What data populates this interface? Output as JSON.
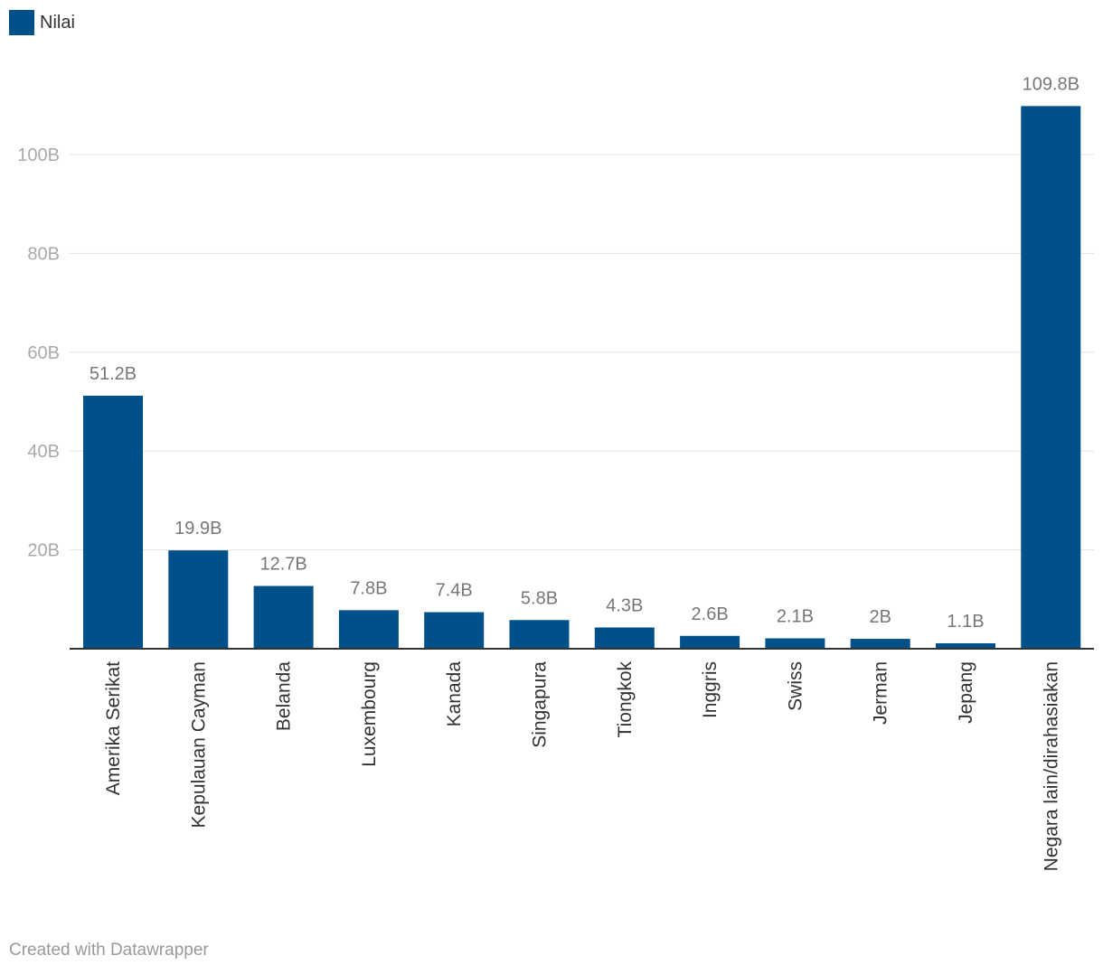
{
  "legend": {
    "label": "Nilai"
  },
  "colors": {
    "bar": "#00508a",
    "grid": "#e3e3e3",
    "axis": "#333333",
    "tick_text": "#aaaaaa",
    "value_text": "#777777",
    "category_text": "#333333"
  },
  "footer": {
    "credit": "Created with Datawrapper"
  },
  "chart_data": {
    "type": "bar",
    "categories": [
      "Amerika Serikat",
      "Kepulauan Cayman",
      "Belanda",
      "Luxembourg",
      "Kanada",
      "Singapura",
      "Tiongkok",
      "Inggris",
      "Swiss",
      "Jerman",
      "Jepang",
      "Negara lain/dirahasiakan"
    ],
    "series": [
      {
        "name": "Nilai",
        "values": [
          51.2,
          19.9,
          12.7,
          7.8,
          7.4,
          5.8,
          4.3,
          2.6,
          2.1,
          2,
          1.1,
          109.8
        ],
        "labels": [
          "51.2B",
          "19.9B",
          "12.7B",
          "7.8B",
          "7.4B",
          "5.8B",
          "4.3B",
          "2.6B",
          "2.1B",
          "2B",
          "1.1B",
          "109.8B"
        ]
      }
    ],
    "ylim": [
      0,
      109.8
    ],
    "yticks": [
      20,
      40,
      60,
      80,
      100
    ],
    "ytick_labels": [
      "20B",
      "40B",
      "60B",
      "80B",
      "100B"
    ],
    "unit": "B",
    "grid": true,
    "legend_position": "top-left",
    "xlabel": "",
    "ylabel": ""
  }
}
